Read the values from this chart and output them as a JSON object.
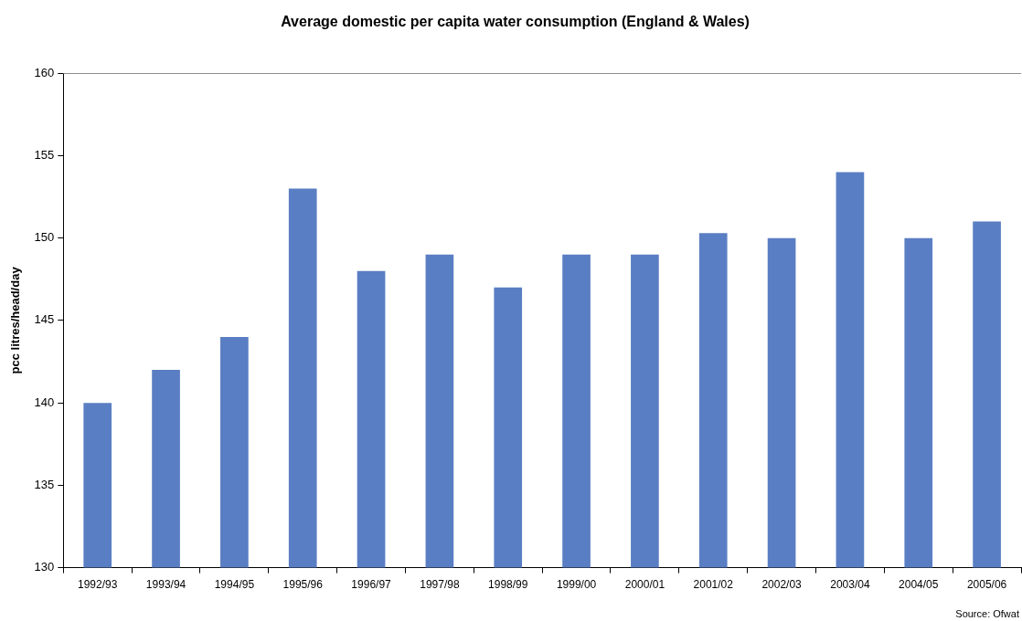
{
  "chart_data": {
    "type": "bar",
    "title": "Average domestic per capita water consumption (England & Wales)",
    "ylabel": "pcc litres/head/day",
    "categories": [
      "1992/93",
      "1993/94",
      "1994/95",
      "1995/96",
      "1996/97",
      "1997/98",
      "1998/99",
      "1999/00",
      "2000/01",
      "2001/02",
      "2002/03",
      "2003/04",
      "2004/05",
      "2005/06"
    ],
    "values": [
      140,
      142,
      144,
      153,
      148,
      149,
      147,
      149,
      149,
      150.3,
      150,
      154,
      150,
      151
    ],
    "color": "#5a7ec3",
    "ylim": [
      130,
      160
    ],
    "yticks": [
      130,
      135,
      140,
      145,
      150,
      155,
      160
    ],
    "grid": false,
    "annotations": [
      "Source: Ofwat"
    ]
  }
}
